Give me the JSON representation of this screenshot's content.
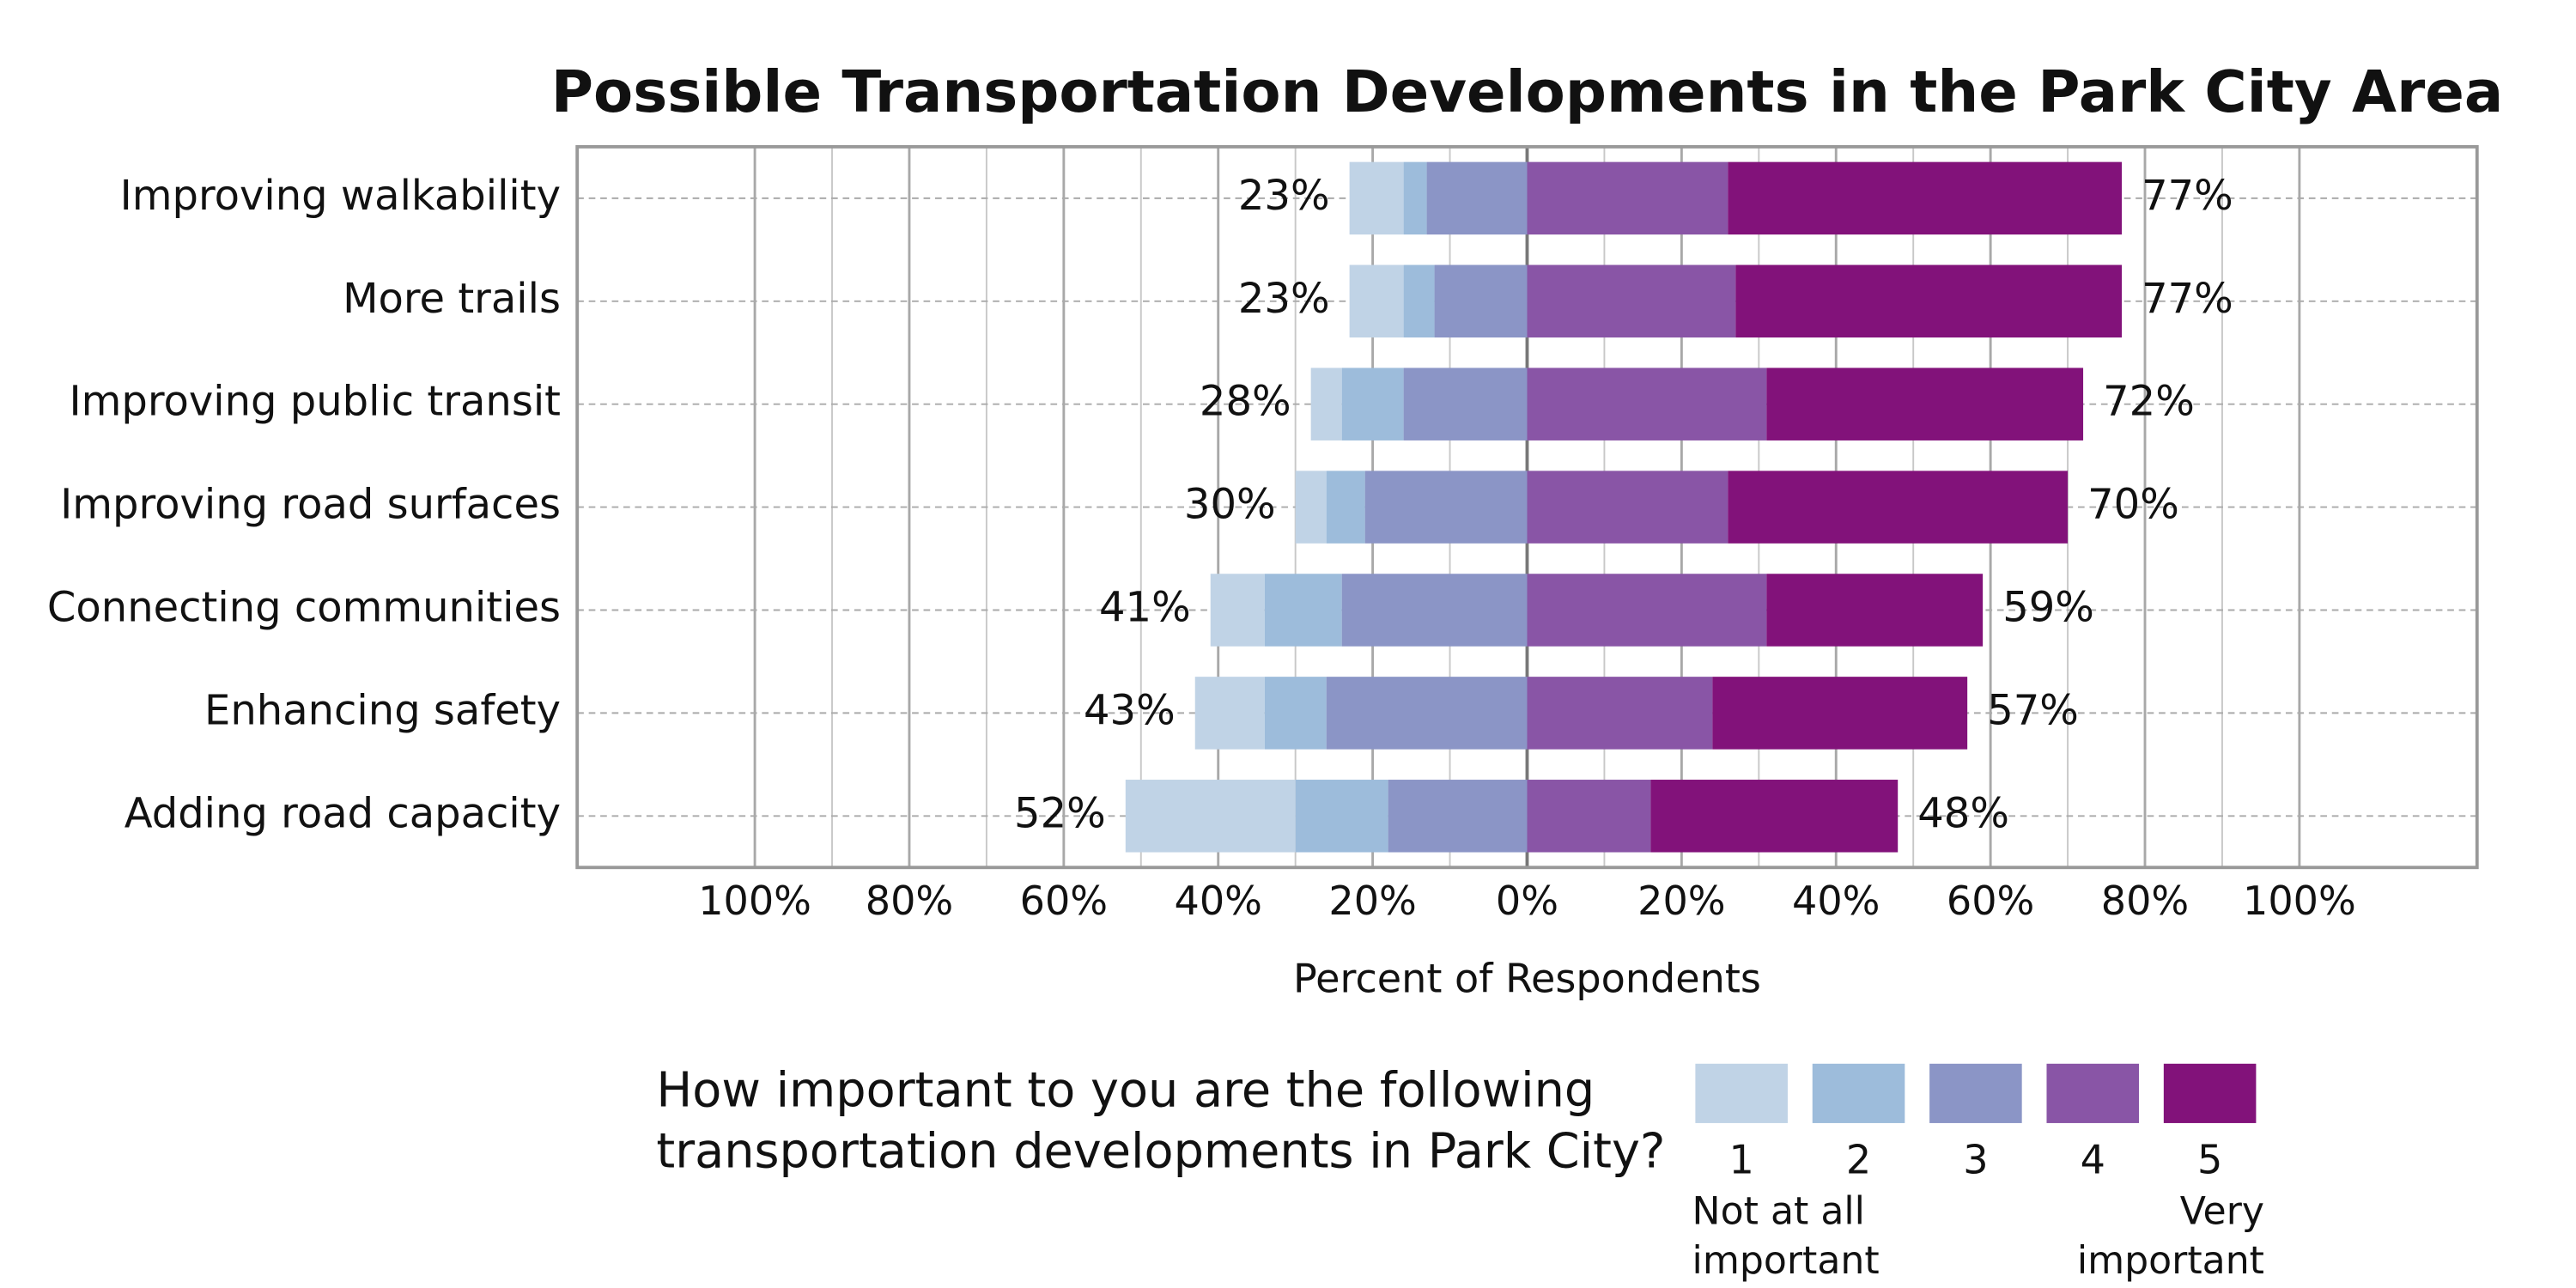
{
  "chart_data": {
    "type": "diverging_bar",
    "title": "Possible Transportation Developments in the Park City Area",
    "x_label": "Percent of Respondents",
    "categories": [
      "Improving walkability",
      "More trails",
      "Improving public transit",
      "Improving road surfaces",
      "Connecting communities",
      "Enhancing safety",
      "Adding road capacity"
    ],
    "series": [
      {
        "name": "1",
        "color": "#c0d3e6",
        "direction": "left",
        "values": [
          7,
          7,
          4,
          4,
          7,
          9,
          22
        ]
      },
      {
        "name": "2",
        "color": "#9dbcdb",
        "direction": "left",
        "values": [
          3,
          4,
          8,
          5,
          10,
          8,
          12
        ]
      },
      {
        "name": "3",
        "color": "#8b95c6",
        "direction": "left",
        "values": [
          13,
          12,
          16,
          21,
          24,
          26,
          18
        ]
      },
      {
        "name": "4",
        "color": "#8955a6",
        "direction": "right",
        "values": [
          26,
          27,
          31,
          26,
          31,
          24,
          16
        ]
      },
      {
        "name": "5",
        "color": "#82127a",
        "direction": "right",
        "values": [
          51,
          50,
          41,
          44,
          28,
          33,
          32
        ]
      }
    ],
    "left_totals": {
      "values": [
        23,
        23,
        28,
        30,
        41,
        43,
        52
      ],
      "value_labels": [
        "23%",
        "23%",
        "28%",
        "30%",
        "41%",
        "43%",
        "52%"
      ]
    },
    "right_totals": {
      "values": [
        77,
        77,
        72,
        70,
        59,
        57,
        48
      ],
      "value_labels": [
        "77%",
        "77%",
        "72%",
        "70%",
        "59%",
        "57%",
        "48%"
      ]
    },
    "xlim": [
      -123,
      123
    ],
    "xticks": [
      {
        "value": -100,
        "label": "100%"
      },
      {
        "value": -80,
        "label": "80%"
      },
      {
        "value": -60,
        "label": "60%"
      },
      {
        "value": -40,
        "label": "40%"
      },
      {
        "value": -20,
        "label": "20%"
      },
      {
        "value": 0,
        "label": "0%"
      },
      {
        "value": 20,
        "label": "20%"
      },
      {
        "value": 40,
        "label": "40%"
      },
      {
        "value": 60,
        "label": "60%"
      },
      {
        "value": 80,
        "label": "80%"
      },
      {
        "value": 100,
        "label": "100%"
      }
    ],
    "minor_xticks": [
      -90,
      -70,
      -50,
      -30,
      -10,
      10,
      30,
      50,
      70,
      90
    ],
    "grid": true,
    "legend": {
      "title": [
        "How important to you are the following",
        "transportation developments in Park City?"
      ],
      "low_label": [
        "Not at all",
        "important"
      ],
      "high_label": [
        "Very",
        "important"
      ]
    }
  }
}
